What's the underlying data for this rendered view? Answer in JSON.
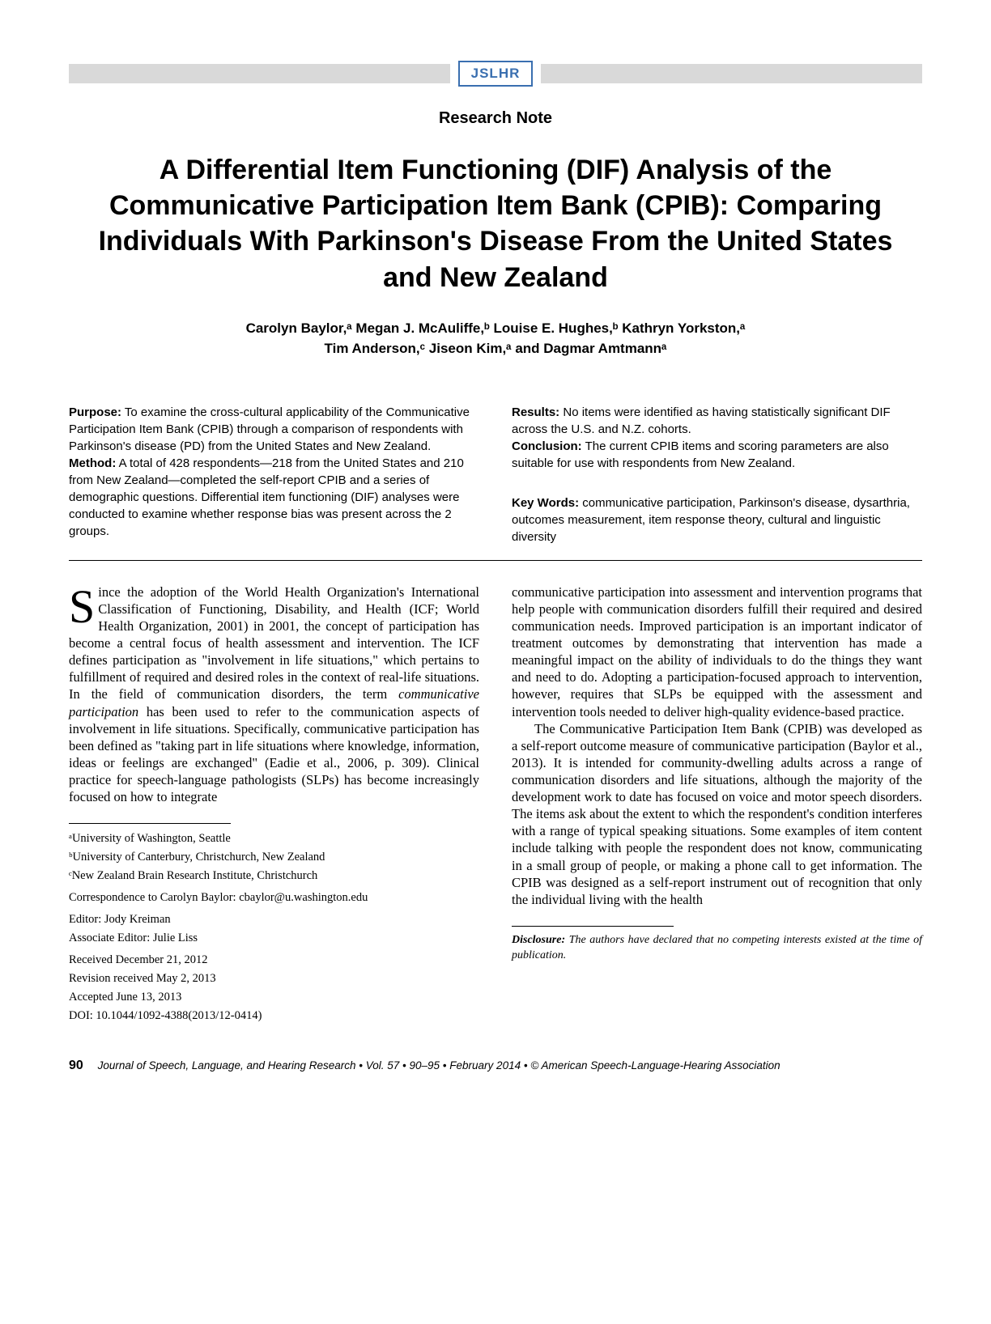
{
  "journal_abbrev": "JSLHR",
  "article_type": "Research Note",
  "title": "A Differential Item Functioning (DIF) Analysis of the Communicative Participation Item Bank (CPIB): Comparing Individuals With Parkinson's Disease From the United States and New Zealand",
  "authors_line1": "Carolyn Baylor,ᵃ Megan J. McAuliffe,ᵇ Louise E. Hughes,ᵇ Kathryn Yorkston,ᵃ",
  "authors_line2": "Tim Anderson,ᶜ Jiseon Kim,ᵃ and Dagmar Amtmannᵃ",
  "abstract": {
    "purpose_label": "Purpose:",
    "purpose_text": " To examine the cross-cultural applicability of the Communicative Participation Item Bank (CPIB) through a comparison of respondents with Parkinson's disease (PD) from the United States and New Zealand.",
    "method_label": "Method:",
    "method_text": " A total of 428 respondents—218 from the United States and 210 from New Zealand—completed the self-report CPIB and a series of demographic questions. Differential item functioning (DIF) analyses were conducted to examine whether response bias was present across the 2 groups.",
    "results_label": "Results:",
    "results_text": " No items were identified as having statistically significant DIF across the U.S. and N.Z. cohorts.",
    "conclusion_label": "Conclusion:",
    "conclusion_text": " The current CPIB items and scoring parameters are also suitable for use with respondents from New Zealand.",
    "keywords_label": "Key Words:",
    "keywords_text": " communicative participation, Parkinson's disease, dysarthria, outcomes measurement, item response theory, cultural and linguistic diversity"
  },
  "body": {
    "dropcap": "S",
    "col1_p1": "ince the adoption of the World Health Organization's International Classification of Functioning, Disability, and Health (ICF; World Health Organization, 2001) in 2001, the concept of participation has become a central focus of health assessment and intervention. The ICF defines participation as \"involvement in life situations,\" which pertains to fulfillment of required and desired roles in the context of real-life situations. In the field of communication disorders, the term ",
    "col1_p1_em": "communicative participation",
    "col1_p1_cont": " has been used to refer to the communication aspects of involvement in life situations. Specifically, communicative participation has been defined as \"taking part in life situations where knowledge, information, ideas or feelings are exchanged\" (Eadie et al., 2006, p. 309). Clinical practice for speech-language pathologists (SLPs) has become increasingly focused on how to integrate",
    "col2_p1": "communicative participation into assessment and intervention programs that help people with communication disorders fulfill their required and desired communication needs. Improved participation is an important indicator of treatment outcomes by demonstrating that intervention has made a meaningful impact on the ability of individuals to do the things they want and need to do. Adopting a participation-focused approach to intervention, however, requires that SLPs be equipped with the assessment and intervention tools needed to deliver high-quality evidence-based practice.",
    "col2_p2": "The Communicative Participation Item Bank (CPIB) was developed as a self-report outcome measure of communicative participation (Baylor et al., 2013). It is intended for community-dwelling adults across a range of communication disorders and life situations, although the majority of the development work to date has focused on voice and motor speech disorders. The items ask about the extent to which the respondent's condition interferes with a range of typical speaking situations. Some examples of item content include talking with people the respondent does not know, communicating in a small group of people, or making a phone call to get information. The CPIB was designed as a self-report instrument out of recognition that only the individual living with the health"
  },
  "affiliations": {
    "a": "ᵃUniversity of Washington, Seattle",
    "b": "ᵇUniversity of Canterbury, Christchurch, New Zealand",
    "c": "ᶜNew Zealand Brain Research Institute, Christchurch"
  },
  "correspondence": "Correspondence to Carolyn Baylor: cbaylor@u.washington.edu",
  "editor": "Editor: Jody Kreiman",
  "assoc_editor": "Associate Editor: Julie Liss",
  "received": "Received December 21, 2012",
  "revision": "Revision received May 2, 2013",
  "accepted": "Accepted June 13, 2013",
  "doi": "DOI: 10.1044/1092-4388(2013/12-0414)",
  "disclosure_label": "Disclosure:",
  "disclosure_text": " The authors have declared that no competing interests existed at the time of publication.",
  "footer": {
    "page_number": "90",
    "journal_info": "Journal of Speech, Language, and Hearing Research • Vol. 57 • 90–95 • February 2014 • © American Speech-Language-Hearing Association"
  }
}
